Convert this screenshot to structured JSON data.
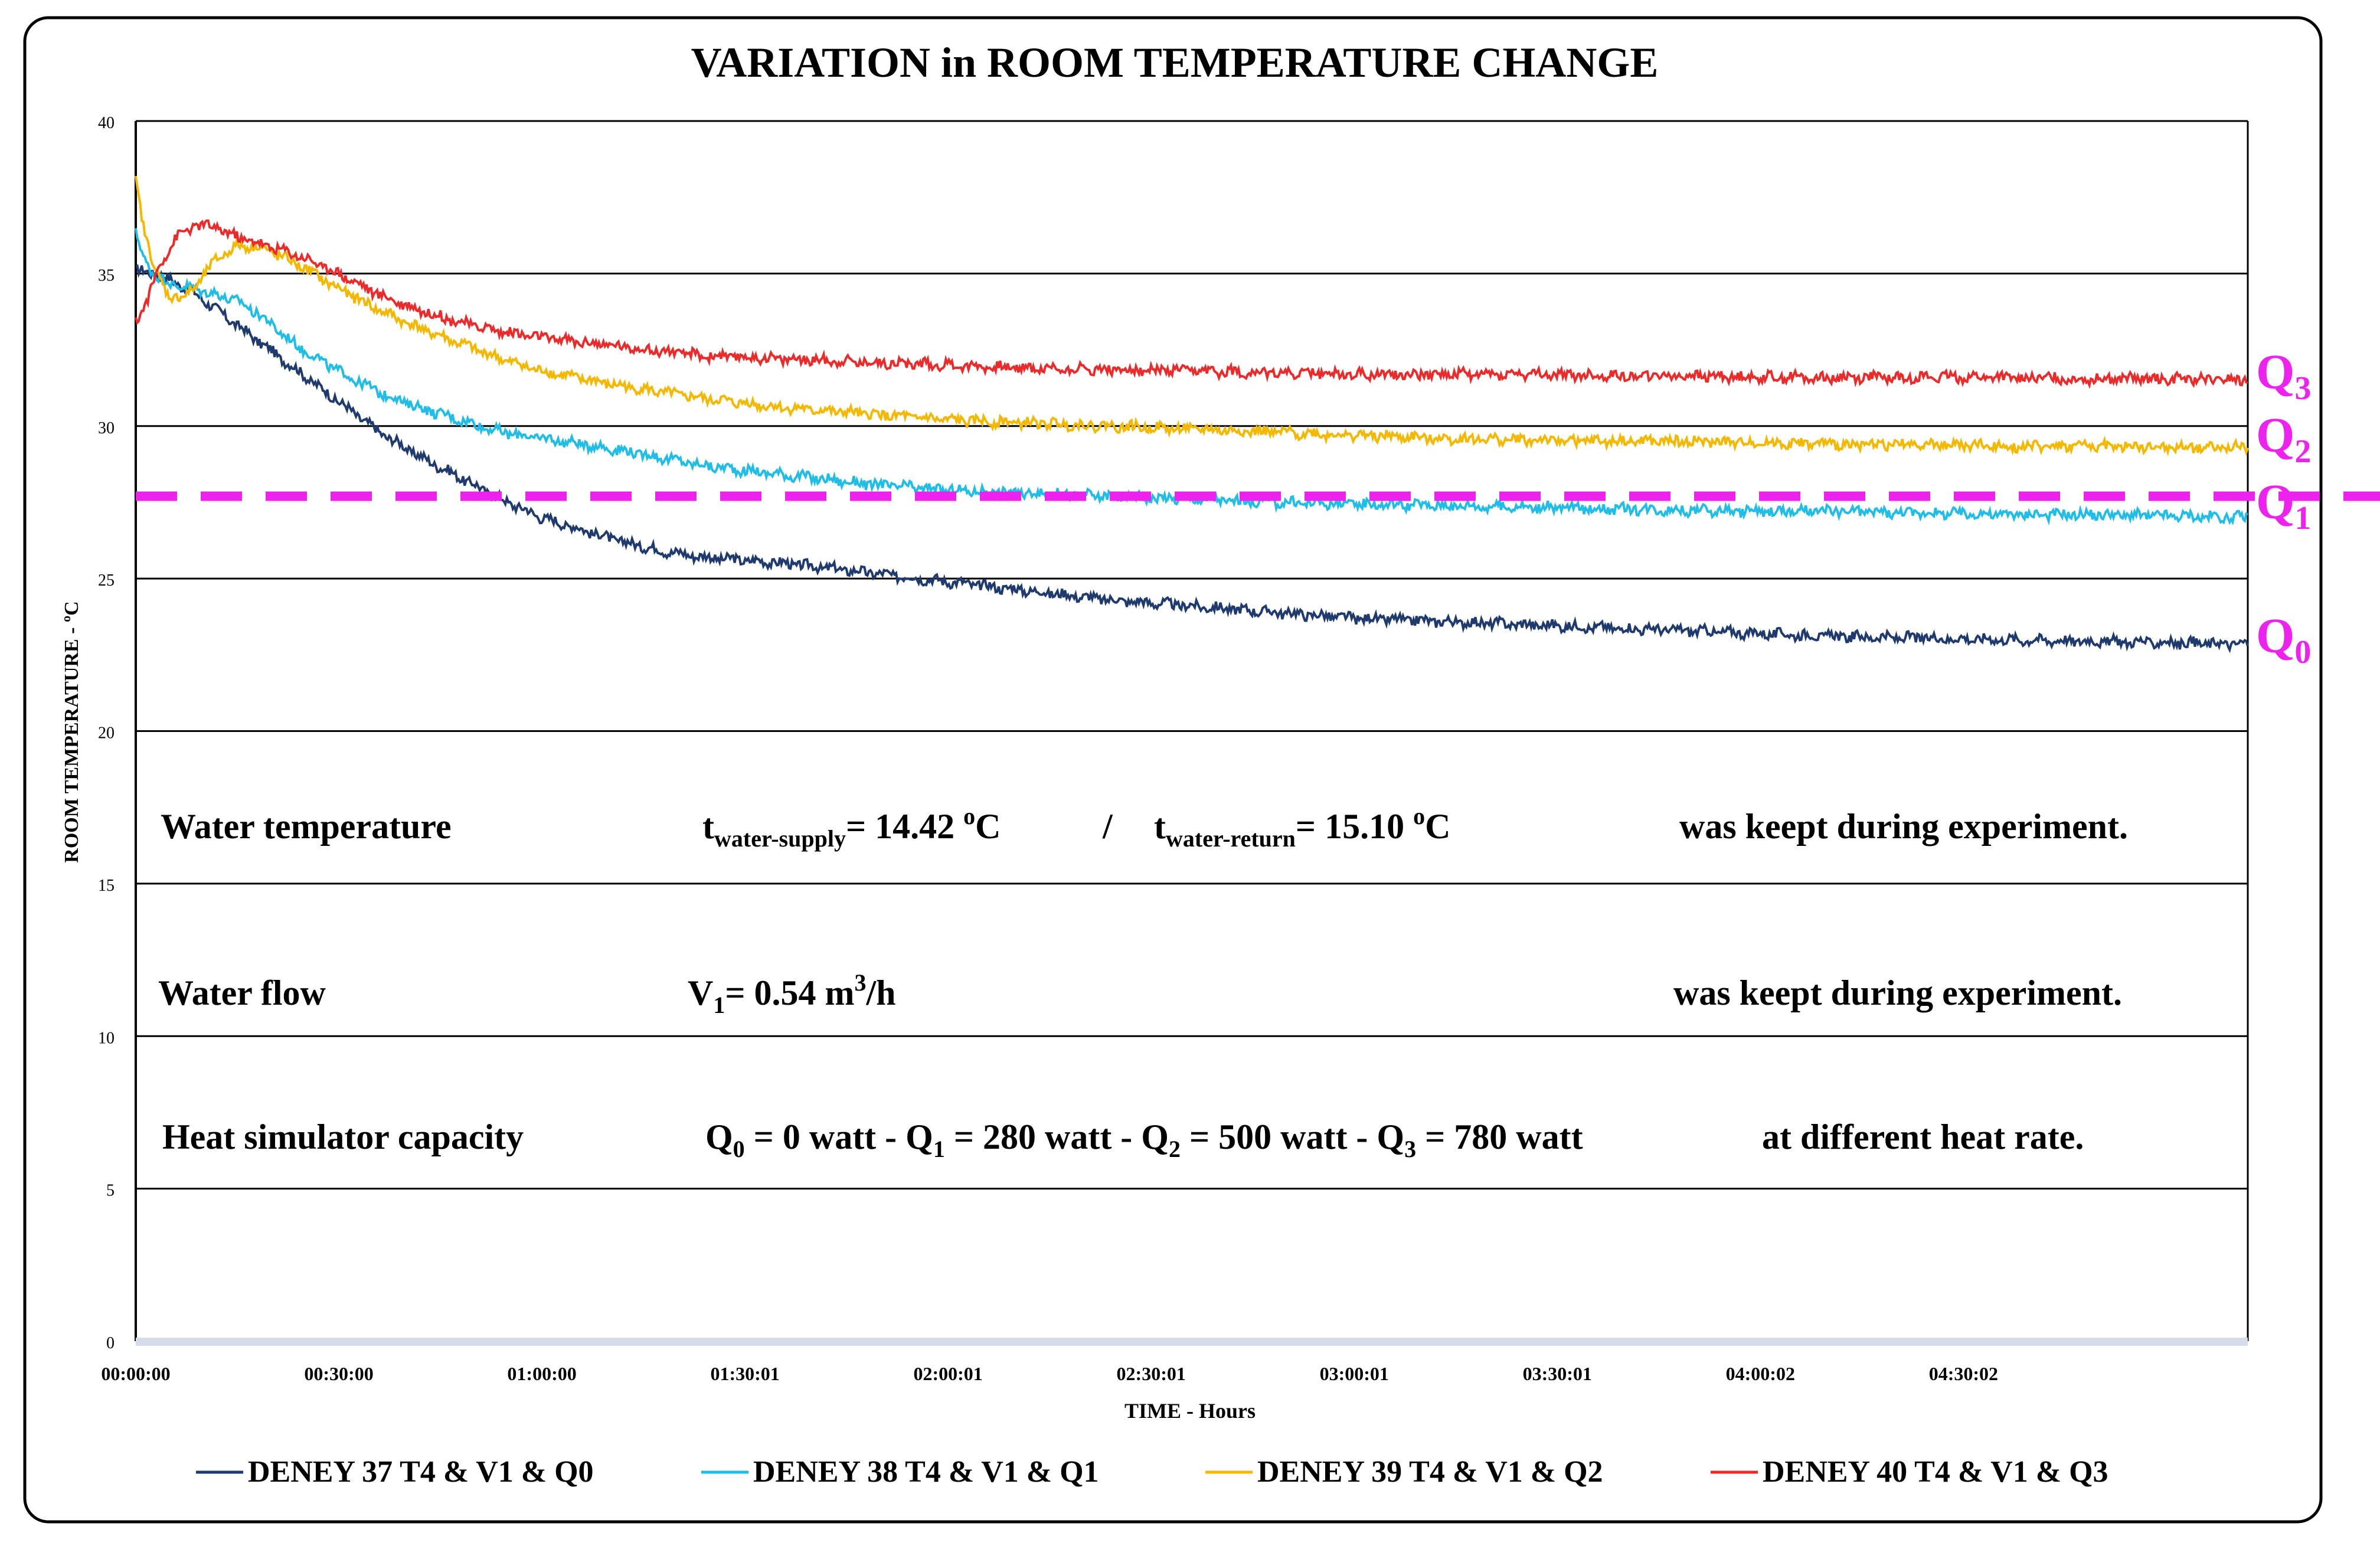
{
  "chart_data": {
    "type": "line",
    "title": "VARIATION in ROOM TEMPERATURE CHANGE",
    "xlabel": "TIME  - Hours",
    "ylabel": "ROOM TEMPERATURE  - ºC",
    "ylim": [
      0,
      40
    ],
    "yticks": [
      0,
      5,
      10,
      15,
      20,
      25,
      30,
      35,
      40
    ],
    "xlim_hours": [
      0,
      5.2
    ],
    "xticks": [
      {
        "label": "00:00:00",
        "h": 0.0
      },
      {
        "label": "00:30:00",
        "h": 0.5
      },
      {
        "label": "01:00:00",
        "h": 1.0
      },
      {
        "label": "01:30:01",
        "h": 1.5
      },
      {
        "label": "02:00:01",
        "h": 2.0
      },
      {
        "label": "02:30:01",
        "h": 2.5
      },
      {
        "label": "03:00:01",
        "h": 3.0
      },
      {
        "label": "03:30:01",
        "h": 3.5
      },
      {
        "label": "04:00:02",
        "h": 4.0
      },
      {
        "label": "04:30:02",
        "h": 4.5
      }
    ],
    "grid": true,
    "legend_position": "bottom",
    "series": [
      {
        "name": "DENEY 37 T4 & V1 & Q0",
        "color": "#1f3a6e",
        "tag_main": "Q",
        "tag_sub": "0",
        "x_hours": [
          0,
          0.05,
          0.1,
          0.15,
          0.2,
          0.3,
          0.4,
          0.5,
          0.6,
          0.7,
          0.8,
          0.9,
          1.0,
          1.1,
          1.2,
          1.3,
          1.4,
          1.5,
          1.6,
          1.8,
          2.0,
          2.2,
          2.4,
          2.6,
          2.8,
          3.0,
          3.2,
          3.4,
          3.6,
          3.8,
          4.0,
          4.2,
          4.4,
          4.6,
          4.8,
          5.0,
          5.2
        ],
        "values": [
          35.1,
          35.0,
          34.7,
          34.3,
          33.8,
          32.8,
          31.8,
          30.8,
          29.8,
          29.0,
          28.3,
          27.6,
          27.0,
          26.6,
          26.2,
          25.9,
          25.7,
          25.6,
          25.5,
          25.2,
          24.9,
          24.6,
          24.3,
          24.1,
          23.9,
          23.7,
          23.6,
          23.5,
          23.4,
          23.3,
          23.2,
          23.1,
          23.05,
          23.0,
          22.95,
          22.9,
          22.85
        ]
      },
      {
        "name": "DENEY 38 T4 & V1 & Q1",
        "color": "#1fbde8",
        "tag_main": "Q",
        "tag_sub": "1",
        "x_hours": [
          0,
          0.02,
          0.05,
          0.1,
          0.15,
          0.2,
          0.25,
          0.3,
          0.4,
          0.5,
          0.6,
          0.7,
          0.8,
          0.9,
          1.0,
          1.2,
          1.4,
          1.6,
          1.8,
          2.0,
          2.2,
          2.4,
          2.6,
          2.8,
          3.0,
          3.2,
          3.4,
          3.6,
          3.8,
          4.0,
          4.2,
          4.4,
          4.6,
          4.8,
          5.0,
          5.2
        ],
        "values": [
          36.3,
          35.5,
          34.9,
          34.6,
          34.5,
          34.3,
          34.1,
          33.7,
          32.6,
          31.8,
          31.1,
          30.6,
          30.2,
          29.8,
          29.6,
          29.2,
          28.7,
          28.4,
          28.1,
          27.9,
          27.8,
          27.7,
          27.6,
          27.5,
          27.45,
          27.4,
          27.35,
          27.3,
          27.25,
          27.2,
          27.2,
          27.15,
          27.1,
          27.1,
          27.05,
          27.0
        ]
      },
      {
        "name": "DENEY 39 T4 & V1 & Q2",
        "color": "#f5b800",
        "tag_main": "Q",
        "tag_sub": "2",
        "x_hours": [
          0,
          0.02,
          0.05,
          0.08,
          0.12,
          0.16,
          0.2,
          0.25,
          0.3,
          0.4,
          0.5,
          0.6,
          0.7,
          0.8,
          0.9,
          1.0,
          1.2,
          1.4,
          1.6,
          1.8,
          2.0,
          2.2,
          2.4,
          2.6,
          2.8,
          3.0,
          3.2,
          3.4,
          3.6,
          3.8,
          4.0,
          4.2,
          4.4,
          4.6,
          4.8,
          5.0,
          5.2
        ],
        "values": [
          38.0,
          36.5,
          35.0,
          34.3,
          34.2,
          34.8,
          35.5,
          35.9,
          35.9,
          35.3,
          34.5,
          33.8,
          33.2,
          32.7,
          32.2,
          31.8,
          31.3,
          30.9,
          30.6,
          30.4,
          30.2,
          30.1,
          30.0,
          29.9,
          29.8,
          29.7,
          29.6,
          29.55,
          29.5,
          29.5,
          29.45,
          29.4,
          29.4,
          29.35,
          29.35,
          29.3,
          29.3
        ]
      },
      {
        "name": "DENEY 40 T4 & V1 & Q3",
        "color": "#ec2a2a",
        "tag_main": "Q",
        "tag_sub": "3",
        "x_hours": [
          0,
          0.03,
          0.06,
          0.1,
          0.15,
          0.2,
          0.25,
          0.3,
          0.4,
          0.5,
          0.6,
          0.7,
          0.8,
          0.9,
          1.0,
          1.2,
          1.4,
          1.6,
          1.8,
          2.0,
          2.2,
          2.4,
          2.6,
          2.8,
          3.0,
          3.2,
          3.4,
          3.6,
          3.8,
          4.0,
          4.2,
          4.4,
          4.6,
          4.8,
          5.0,
          5.2
        ],
        "values": [
          33.4,
          34.2,
          35.3,
          36.2,
          36.6,
          36.5,
          36.2,
          36.0,
          35.6,
          35.0,
          34.3,
          33.8,
          33.4,
          33.1,
          32.9,
          32.6,
          32.3,
          32.2,
          32.1,
          32.0,
          31.9,
          31.85,
          31.8,
          31.75,
          31.7,
          31.7,
          31.7,
          31.65,
          31.65,
          31.6,
          31.6,
          31.6,
          31.6,
          31.55,
          31.55,
          31.5
        ]
      }
    ],
    "reference_line": {
      "value": 27.7,
      "color": "#ee22ee",
      "style": "dashed"
    },
    "annotations": {
      "row1": {
        "label": "Water temperature",
        "ts_main": "t",
        "ts_sub": "water-supply",
        "ts_val": "= 14.42 ",
        "ts_deg": "o",
        "ts_unit": "C",
        "sep": "/",
        "tr_main": "t",
        "tr_sub": "water-return",
        "tr_val": "= 15.10 ",
        "tr_deg": "o",
        "tr_unit": "C",
        "note": "was keept during experiment."
      },
      "row2": {
        "label": "Water flow",
        "v_main": "V",
        "v_sub": "1",
        "v_val": "= 0.54 m",
        "v_sup": "3",
        "v_unit": "/h",
        "note": "was keept during experiment."
      },
      "row3": {
        "label": "Heat simulator capacity",
        "q0_main": "Q",
        "q0_sub": "0",
        "q0_val": " = 0 watt - ",
        "q1_main": "Q",
        "q1_sub": "1",
        "q1_val": " = 280 watt  - ",
        "q2_main": "Q",
        "q2_sub": "2",
        "q2_val": " = 500 watt - ",
        "q3_main": "Q",
        "q3_sub": "3",
        "q3_val": " = 780 watt",
        "note": "at different heat rate."
      }
    }
  }
}
